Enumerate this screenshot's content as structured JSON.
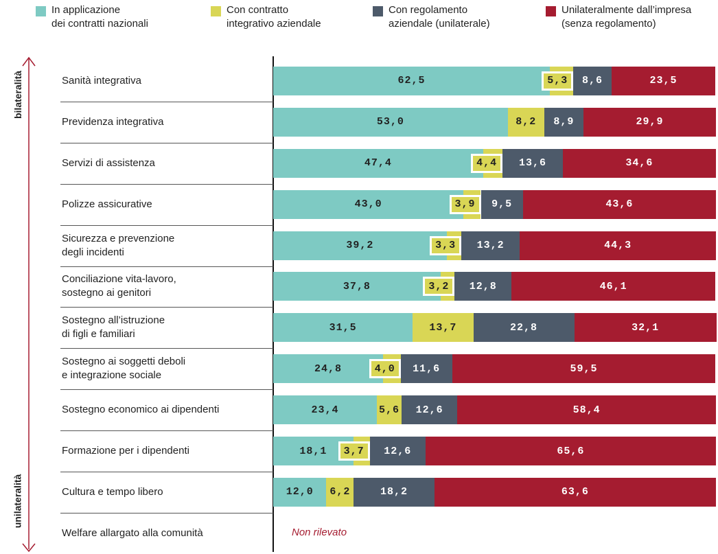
{
  "chart_data": {
    "type": "bar",
    "orientation": "horizontal",
    "stacked": true,
    "categories": [
      "Sanità integrativa",
      "Previdenza integrativa",
      "Servizi di assistenza",
      "Polizze assicurative",
      "Sicurezza e prevenzione\ndegli incidenti",
      "Conciliazione vita-lavoro,\nsostegno ai genitori",
      "Sostegno all’istruzione\ndi figli e familiari",
      "Sostegno ai soggetti deboli\ne integrazione sociale",
      "Sostegno economico ai dipendenti",
      "Formazione per i dipendenti",
      "Cultura e tempo libero",
      "Welfare allargato alla comunità"
    ],
    "series": [
      {
        "name": "In applicazione\ndei contratti nazionali",
        "color": "#7ecac3",
        "values": [
          62.5,
          53.0,
          47.4,
          43.0,
          39.2,
          37.8,
          31.5,
          24.8,
          23.4,
          18.1,
          12.0,
          null
        ],
        "value_labels": [
          "62,5",
          "53,0",
          "47,4",
          "43,0",
          "39,2",
          "37,8",
          "31,5",
          "24,8",
          "23,4",
          "18,1",
          "12,0",
          null
        ]
      },
      {
        "name": "Con contratto\nintegrativo aziendale",
        "color": "#d9d655",
        "values": [
          5.3,
          8.2,
          4.4,
          3.9,
          3.3,
          3.2,
          13.7,
          4.0,
          5.6,
          3.7,
          6.2,
          null
        ],
        "value_labels": [
          "5,3",
          "8,2",
          "4,4",
          "3,9",
          "3,3",
          "3,2",
          "13,7",
          "4,0",
          "5,6",
          "3,7",
          "6,2",
          null
        ]
      },
      {
        "name": "Con regolamento\naziendale (unilaterale)",
        "color": "#4d5a6a",
        "values": [
          8.6,
          8.9,
          13.6,
          9.5,
          13.2,
          12.8,
          22.8,
          11.6,
          12.6,
          12.6,
          18.2,
          null
        ],
        "value_labels": [
          "8,6",
          "8,9",
          "13,6",
          "9,5",
          "13,2",
          "12,8",
          "22,8",
          "11,6",
          "12,6",
          "12,6",
          "18,2",
          null
        ]
      },
      {
        "name": "Unilateralmente dall’impresa\n(senza regolamento)",
        "color": "#a51c30",
        "values": [
          23.5,
          29.9,
          34.6,
          43.6,
          44.3,
          46.1,
          32.1,
          59.5,
          58.4,
          65.6,
          63.6,
          null
        ],
        "value_labels": [
          "23,5",
          "29,9",
          "34,6",
          "43,6",
          "44,3",
          "46,1",
          "32,1",
          "59,5",
          "58,4",
          "65,6",
          "63,6",
          null
        ]
      }
    ],
    "xlim": [
      0,
      100
    ],
    "annotations": [
      "bilateralità",
      "unilateralità",
      "Non rilevato"
    ]
  }
}
